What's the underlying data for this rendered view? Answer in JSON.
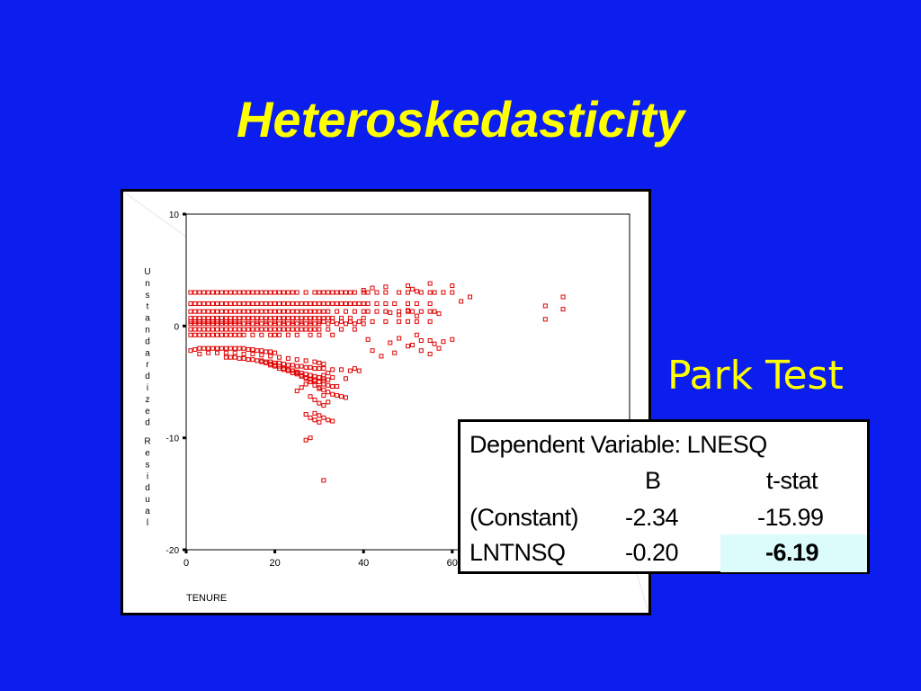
{
  "slide": {
    "title": "Heteroskedasticity",
    "side_label": "Park Test",
    "colors": {
      "background": "#0b1eee",
      "title": "#ffff00",
      "marker": "#e00000",
      "highlight": "#dcfcfc"
    }
  },
  "chart_data": {
    "type": "scatter",
    "xlabel": "TENURE",
    "ylabel": "Unstandardized Residual",
    "xlim": [
      0,
      100
    ],
    "ylim": [
      -20,
      10
    ],
    "x_ticks": [
      0,
      20,
      40,
      60
    ],
    "y_ticks": [
      10,
      0,
      -10,
      -20
    ],
    "marker": "open-square",
    "series": [
      {
        "x": [
          1,
          2,
          3,
          4,
          5,
          6,
          7,
          8,
          9,
          10,
          11,
          12,
          13,
          14,
          15,
          16,
          17,
          18,
          19,
          20,
          21,
          22,
          23,
          24,
          25,
          27,
          29,
          30,
          31,
          32,
          33,
          34,
          35,
          36,
          37,
          38,
          40,
          41,
          43,
          45,
          48,
          50,
          53,
          55,
          58,
          60,
          1,
          2,
          3,
          4,
          5,
          6,
          7,
          8,
          9,
          10,
          11,
          12,
          13,
          14,
          15,
          16,
          17,
          18,
          19,
          20,
          21,
          22,
          23,
          24,
          25,
          26,
          27,
          28,
          29,
          30,
          31,
          32,
          33,
          34,
          35,
          36,
          37,
          38,
          39,
          40,
          41,
          43,
          45,
          47,
          50,
          52,
          55,
          1,
          2,
          3,
          4,
          5,
          6,
          7,
          8,
          9,
          10,
          11,
          12,
          13,
          14,
          15,
          16,
          17,
          18,
          19,
          20,
          21,
          22,
          23,
          24,
          25,
          26,
          27,
          28,
          29,
          30,
          31,
          32,
          34,
          36,
          38,
          40,
          41,
          43,
          45,
          48,
          50,
          51,
          53,
          55,
          56,
          1,
          2,
          3,
          4,
          5,
          6,
          7,
          8,
          9,
          10,
          11,
          12,
          13,
          14,
          15,
          16,
          17,
          18,
          19,
          20,
          21,
          22,
          23,
          24,
          25,
          26,
          27,
          28,
          29,
          30,
          31,
          32,
          33,
          35,
          37,
          40,
          1,
          2,
          3,
          4,
          5,
          6,
          7,
          8,
          9,
          10,
          11,
          12,
          13,
          14,
          15,
          16,
          17,
          18,
          19,
          20,
          21,
          22,
          23,
          24,
          25,
          26,
          27,
          28,
          29,
          30,
          32,
          34,
          36,
          38,
          40,
          1,
          2,
          3,
          4,
          5,
          6,
          7,
          8,
          9,
          10,
          11,
          12,
          13,
          14,
          15,
          16,
          17,
          18,
          19,
          20,
          21,
          22,
          23,
          24,
          25,
          26,
          27,
          28,
          29,
          30,
          32,
          35,
          38,
          1,
          2,
          3,
          4,
          5,
          6,
          7,
          8,
          9,
          10,
          11,
          12,
          13,
          15,
          17,
          19,
          20,
          21,
          23,
          25,
          28,
          30,
          33,
          1,
          2,
          3,
          4,
          5,
          6,
          7,
          8,
          9,
          10,
          11,
          12,
          14,
          16,
          18,
          20,
          22,
          24,
          26,
          28,
          30,
          31,
          33,
          35,
          37,
          39,
          42,
          45,
          48,
          50,
          52,
          55,
          1,
          2,
          3,
          4,
          5,
          6,
          7,
          8,
          9,
          10,
          11,
          12,
          13,
          14,
          15,
          16,
          17,
          18,
          19,
          20,
          3,
          5,
          7,
          9,
          11,
          13,
          15,
          17,
          19,
          21,
          23,
          25,
          27,
          29,
          30,
          31,
          9,
          10,
          11,
          12,
          13,
          14,
          15,
          16,
          17,
          18,
          19,
          20,
          21,
          22,
          23,
          24,
          25,
          26,
          27,
          28,
          29,
          30,
          31,
          33,
          35,
          37,
          39,
          17,
          18,
          19,
          20,
          21,
          22,
          23,
          24,
          25,
          26,
          27,
          28,
          29,
          30,
          31,
          32,
          19,
          20,
          21,
          22,
          23,
          24,
          25,
          26,
          27,
          28,
          29,
          30,
          31,
          32,
          33,
          24,
          25,
          26,
          27,
          28,
          29,
          30,
          31,
          32,
          33,
          34,
          35,
          36,
          29,
          30,
          31,
          32,
          33,
          40,
          42,
          45,
          50,
          51,
          52,
          55,
          56,
          60,
          46,
          48,
          50,
          52,
          57,
          41,
          46,
          48,
          51,
          53,
          56,
          58,
          60,
          52,
          55,
          62,
          64,
          50,
          53,
          55,
          57,
          42,
          44,
          47,
          25,
          26,
          27,
          28,
          29,
          30,
          31,
          32,
          27,
          28,
          29,
          30,
          28,
          29,
          30,
          31,
          27,
          30,
          31,
          33,
          34,
          36,
          38,
          31,
          32,
          81,
          81,
          85,
          85,
          28,
          31
        ],
        "y": [
          3,
          3,
          3,
          3,
          3,
          3,
          3,
          3,
          3,
          3,
          3,
          3,
          3,
          3,
          3,
          3,
          3,
          3,
          3,
          3,
          3,
          3,
          3,
          3,
          3,
          3,
          3,
          3,
          3,
          3,
          3,
          3,
          3,
          3,
          3,
          3,
          3,
          3,
          3,
          3,
          3,
          3,
          3,
          3,
          3,
          3,
          2,
          2,
          2,
          2,
          2,
          2,
          2,
          2,
          2,
          2,
          2,
          2,
          2,
          2,
          2,
          2,
          2,
          2,
          2,
          2,
          2,
          2,
          2,
          2,
          2,
          2,
          2,
          2,
          2,
          2,
          2,
          2,
          2,
          2,
          2,
          2,
          2,
          2,
          2,
          2,
          2,
          2,
          2,
          2,
          2,
          2,
          2,
          1.3,
          1.3,
          1.3,
          1.3,
          1.3,
          1.3,
          1.3,
          1.3,
          1.3,
          1.3,
          1.3,
          1.3,
          1.3,
          1.3,
          1.3,
          1.3,
          1.3,
          1.3,
          1.3,
          1.3,
          1.3,
          1.3,
          1.3,
          1.3,
          1.3,
          1.3,
          1.3,
          1.3,
          1.3,
          1.3,
          1.3,
          1.3,
          1.3,
          1.3,
          1.3,
          1.3,
          1.3,
          1.3,
          1.3,
          1.3,
          1.3,
          1.3,
          1.3,
          1.3,
          1.3,
          0.7,
          0.7,
          0.7,
          0.7,
          0.7,
          0.7,
          0.7,
          0.7,
          0.7,
          0.7,
          0.7,
          0.7,
          0.7,
          0.7,
          0.7,
          0.7,
          0.7,
          0.7,
          0.7,
          0.7,
          0.7,
          0.7,
          0.7,
          0.7,
          0.7,
          0.7,
          0.7,
          0.7,
          0.7,
          0.7,
          0.7,
          0.7,
          0.7,
          0.7,
          0.7,
          0.7,
          0.2,
          0.2,
          0.2,
          0.2,
          0.2,
          0.2,
          0.2,
          0.2,
          0.2,
          0.2,
          0.2,
          0.2,
          0.2,
          0.2,
          0.2,
          0.2,
          0.2,
          0.2,
          0.2,
          0.2,
          0.2,
          0.2,
          0.2,
          0.2,
          0.2,
          0.2,
          0.2,
          0.2,
          0.2,
          0.2,
          0.2,
          0.2,
          0.2,
          0.2,
          0.2,
          -0.3,
          -0.3,
          -0.3,
          -0.3,
          -0.3,
          -0.3,
          -0.3,
          -0.3,
          -0.3,
          -0.3,
          -0.3,
          -0.3,
          -0.3,
          -0.3,
          -0.3,
          -0.3,
          -0.3,
          -0.3,
          -0.3,
          -0.3,
          -0.3,
          -0.3,
          -0.3,
          -0.3,
          -0.3,
          -0.3,
          -0.3,
          -0.3,
          -0.3,
          -0.3,
          -0.3,
          -0.3,
          -0.3,
          -0.8,
          -0.8,
          -0.8,
          -0.8,
          -0.8,
          -0.8,
          -0.8,
          -0.8,
          -0.8,
          -0.8,
          -0.8,
          -0.8,
          -0.8,
          -0.8,
          -0.8,
          -0.8,
          -0.8,
          -0.8,
          -0.8,
          -0.8,
          -0.8,
          -0.8,
          -0.8,
          0.4,
          0.4,
          0.4,
          0.4,
          0.4,
          0.4,
          0.4,
          0.4,
          0.4,
          0.4,
          0.4,
          0.4,
          0.4,
          0.4,
          0.4,
          0.4,
          0.4,
          0.4,
          0.4,
          0.4,
          0.4,
          0.4,
          0.4,
          0.4,
          0.4,
          0.4,
          0.4,
          0.4,
          0.4,
          0.4,
          0.4,
          0.4,
          -2.2,
          -2.1,
          -2,
          -2,
          -2,
          -2,
          -2,
          -2,
          -2,
          -2,
          -2,
          -2,
          -2,
          -2.1,
          -2.1,
          -2.2,
          -2.2,
          -2.3,
          -2.3,
          -2.4,
          -2.5,
          -2.4,
          -2.4,
          -2.4,
          -2.4,
          -2.5,
          -2.5,
          -2.6,
          -2.7,
          -2.8,
          -2.9,
          -3,
          -3.1,
          -3.2,
          -3.3,
          -3.4,
          -2.8,
          -2.8,
          -2.8,
          -2.9,
          -2.9,
          -3,
          -3,
          -3.1,
          -3.1,
          -3.2,
          -3.2,
          -3.3,
          -3.3,
          -3.4,
          -3.5,
          -3.5,
          -3.6,
          -3.6,
          -3.7,
          -3.7,
          -3.8,
          -3.8,
          -3.8,
          -3.9,
          -3.9,
          -4,
          -4,
          -3.2,
          -3.3,
          -3.4,
          -3.5,
          -3.6,
          -3.8,
          -3.9,
          -4,
          -4.1,
          -4.2,
          -4.3,
          -4.4,
          -4.5,
          -4.6,
          -4.7,
          -4.8,
          -3.5,
          -3.6,
          -3.8,
          -3.9,
          -4,
          -4.2,
          -4.3,
          -4.5,
          -4.6,
          -4.8,
          -4.9,
          -5,
          -5.2,
          -5.3,
          -5.4,
          -4,
          -4.2,
          -4.4,
          -4.7,
          -5,
          -5.3,
          -5.5,
          -5.7,
          -5.9,
          -6.1,
          -6.2,
          -6.3,
          -6.4,
          -7.8,
          -8,
          -8.2,
          -8.4,
          -8.5,
          3.2,
          3.4,
          3.5,
          3.6,
          3.3,
          3.1,
          3.8,
          3,
          3.6,
          1.2,
          1,
          1.4,
          0.9,
          1.1,
          -1.2,
          -1.5,
          -1.1,
          -1.7,
          -1.3,
          -1.6,
          -1.4,
          -1.2,
          -0.8,
          -1.3,
          2.2,
          2.6,
          -1.8,
          -2.2,
          -2.5,
          -2,
          -2.2,
          -2.7,
          -2.4,
          -5.8,
          -5.5,
          -5.2,
          -5,
          -4.8,
          -4.6,
          -4.4,
          -4.2,
          -7.9,
          -8.2,
          -8.4,
          -8.6,
          -6.3,
          -6.6,
          -6.9,
          -7.1,
          -10.2,
          -5.6,
          -4.9,
          -4.6,
          -5.4,
          -4.7,
          -3.8,
          -6.2,
          -6.8,
          0.6,
          1.8,
          1.5,
          2.6,
          -10,
          -13.8
        ]
      }
    ],
    "table": {
      "heading": "Dependent Variable: LNESQ",
      "columns": [
        "B",
        "t-stat"
      ],
      "rows": [
        {
          "label": "(Constant)",
          "b": "-2.34",
          "t": "-15.99"
        },
        {
          "label": "LNTNSQ",
          "b": "-0.20",
          "t": "-6.19"
        }
      ]
    }
  }
}
